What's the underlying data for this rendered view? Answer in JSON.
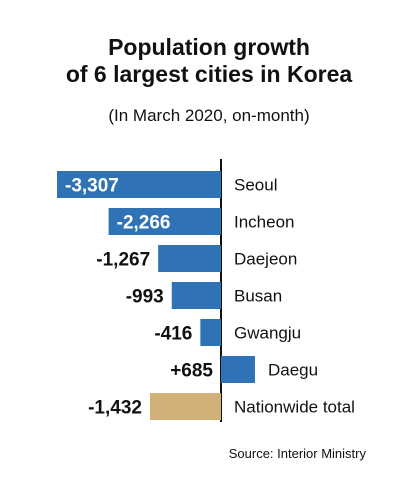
{
  "title_line1": "Population growth",
  "title_line2": "of 6 largest cities in Korea",
  "subtitle": "(In March 2020, on-month)",
  "source": "Source: Interior Ministry",
  "colors": {
    "city_bar": "#2f73b6",
    "total_bar": "#d2b178",
    "axis": "#111111",
    "inside_label": "#ffffff",
    "outside_label": "#111111"
  },
  "chart_data": {
    "type": "bar",
    "orientation": "horizontal",
    "title": "Population growth of 6 largest cities in Korea",
    "subtitle": "(In March 2020, on-month)",
    "categories": [
      "Seoul",
      "Incheon",
      "Daejeon",
      "Busan",
      "Gwangju",
      "Daegu",
      "Nationwide total"
    ],
    "values": [
      -3307,
      -2266,
      -1267,
      -993,
      -416,
      685,
      -1432
    ],
    "value_labels": [
      "-3,307",
      "-2,266",
      "-1,267",
      "-993",
      "-416",
      "+685",
      "-1,432"
    ],
    "highlight": [
      "city",
      "city",
      "city",
      "city",
      "city",
      "city",
      "total"
    ],
    "grid": false,
    "legend": "none"
  }
}
